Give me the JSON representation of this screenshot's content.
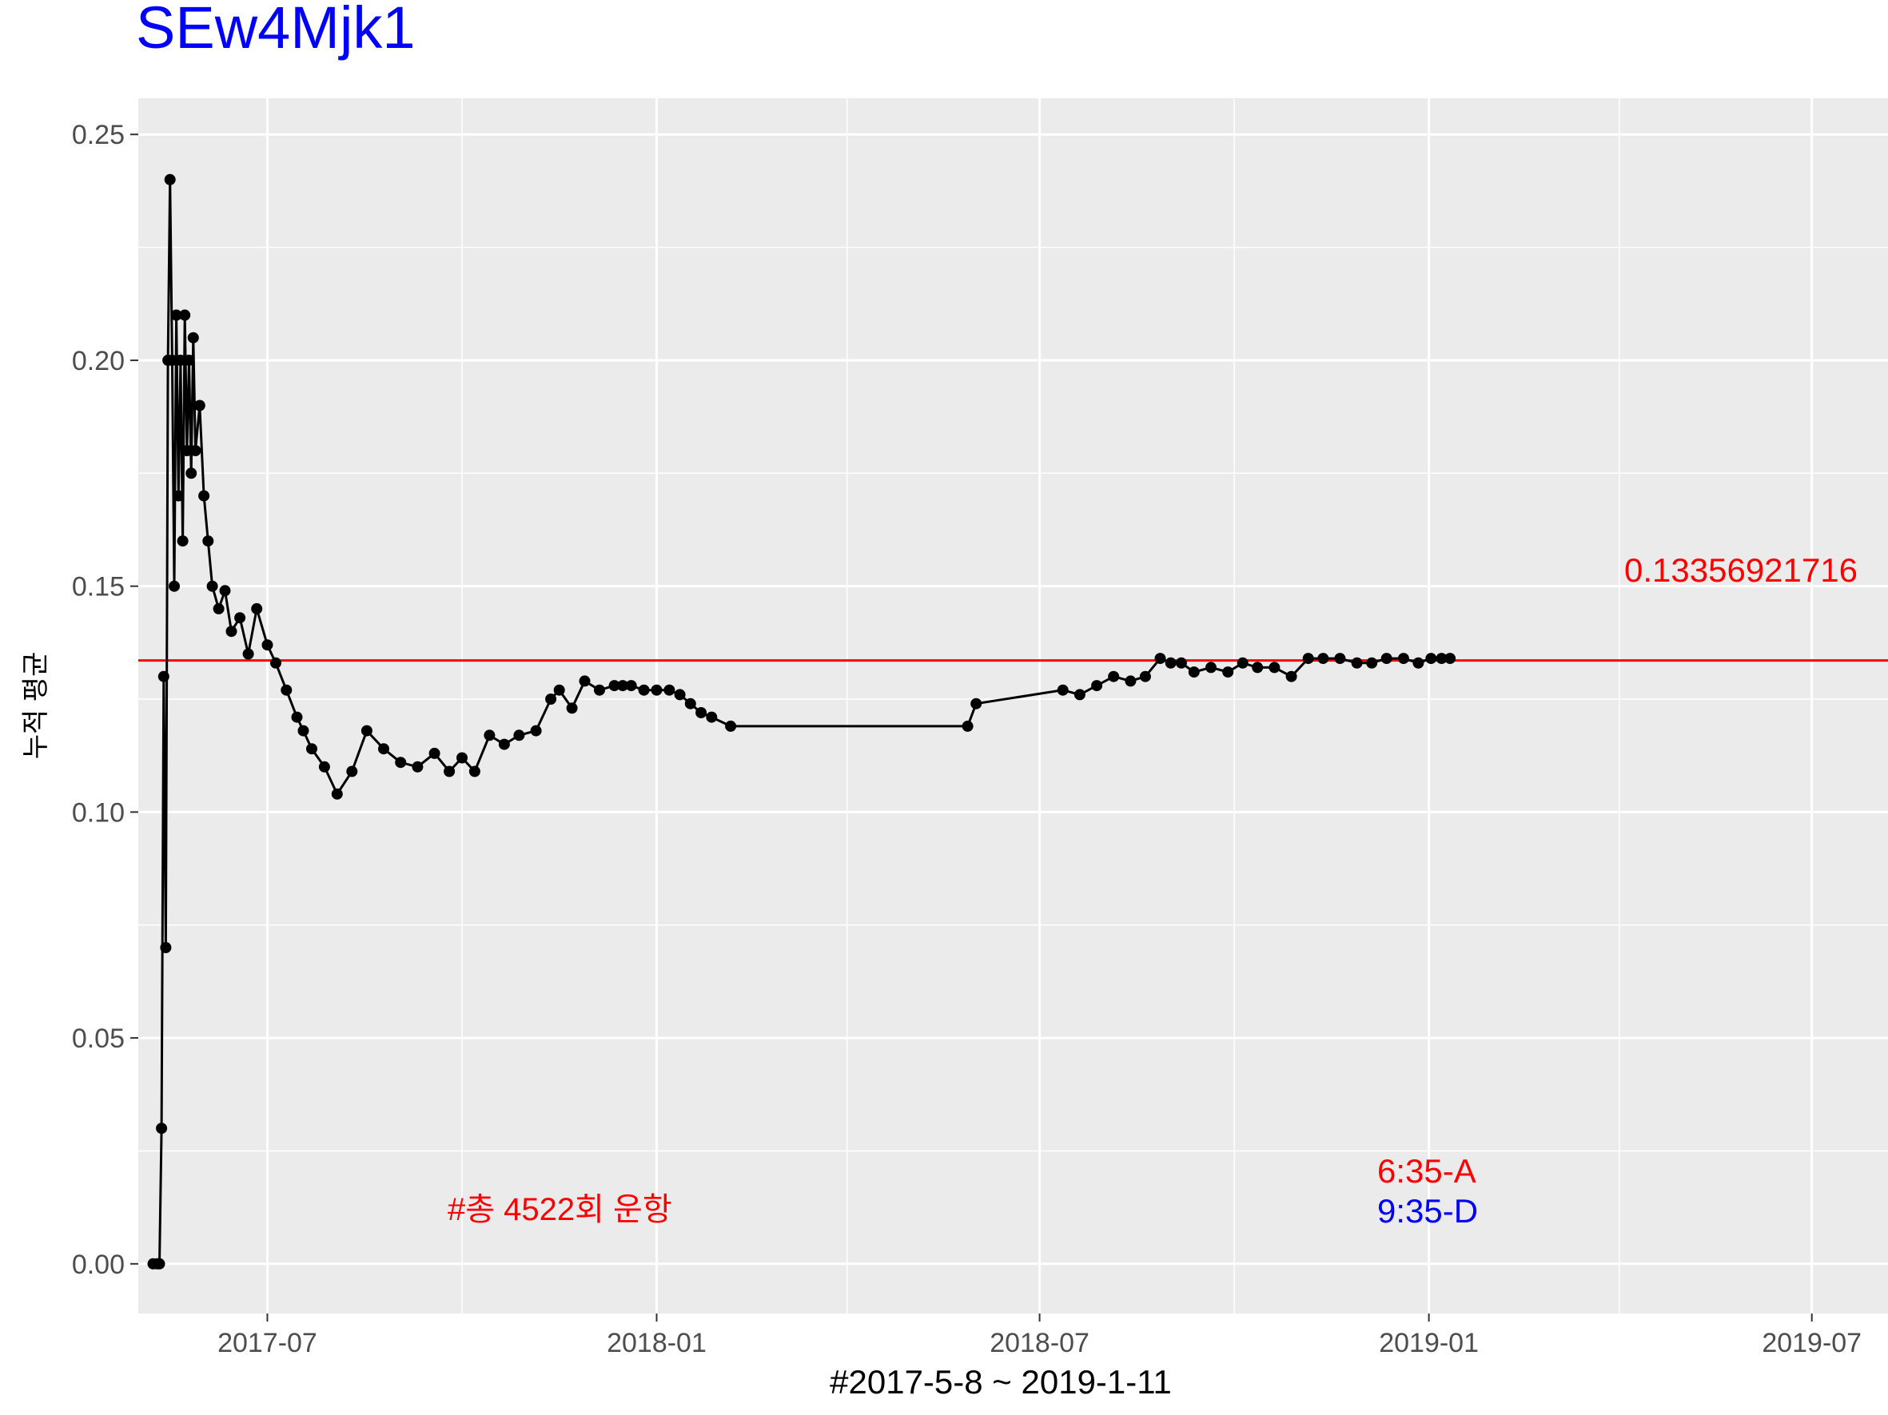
{
  "chart_data": {
    "type": "line",
    "title": "SEw4Mjk1",
    "xlabel": "#2017-5-8 ~ 2019-1-11",
    "ylabel": "누적 평균",
    "x_ticks": [
      "2017-07",
      "2018-01",
      "2018-07",
      "2019-01",
      "2019-07"
    ],
    "y_ticks": [
      "0.00",
      "0.05",
      "0.10",
      "0.15",
      "0.20",
      "0.25"
    ],
    "ylim": [
      -0.011,
      0.258
    ],
    "xlim": [
      "2017-05-01",
      "2019-08-06"
    ],
    "grid": true,
    "series": [
      {
        "x": [
          "2017-05-08",
          "2017-05-10",
          "2017-05-11",
          "2017-05-12",
          "2017-05-13",
          "2017-05-14",
          "2017-05-15",
          "2017-05-16",
          "2017-05-17",
          "2017-05-18",
          "2017-05-19",
          "2017-05-20",
          "2017-05-21",
          "2017-05-22",
          "2017-05-23",
          "2017-05-24",
          "2017-05-25",
          "2017-05-26",
          "2017-05-27",
          "2017-05-28",
          "2017-05-30",
          "2017-06-01",
          "2017-06-03",
          "2017-06-05",
          "2017-06-08",
          "2017-06-11",
          "2017-06-14",
          "2017-06-18",
          "2017-06-22",
          "2017-06-26",
          "2017-07-01",
          "2017-07-05",
          "2017-07-10",
          "2017-07-15",
          "2017-07-18",
          "2017-07-22",
          "2017-07-28",
          "2017-08-03",
          "2017-08-10",
          "2017-08-17",
          "2017-08-25",
          "2017-09-02",
          "2017-09-10",
          "2017-09-18",
          "2017-09-25",
          "2017-10-01",
          "2017-10-07",
          "2017-10-14",
          "2017-10-21",
          "2017-10-28",
          "2017-11-05",
          "2017-11-12",
          "2017-11-16",
          "2017-11-22",
          "2017-11-28",
          "2017-12-05",
          "2017-12-12",
          "2017-12-16",
          "2017-12-20",
          "2017-12-26",
          "2018-01-01",
          "2018-01-07",
          "2018-01-12",
          "2018-01-17",
          "2018-01-22",
          "2018-01-27",
          "2018-02-05",
          "2018-05-28",
          "2018-06-01",
          "2018-07-12",
          "2018-07-20",
          "2018-07-28",
          "2018-08-05",
          "2018-08-13",
          "2018-08-20",
          "2018-08-27",
          "2018-09-01",
          "2018-09-06",
          "2018-09-12",
          "2018-09-20",
          "2018-09-28",
          "2018-10-05",
          "2018-10-12",
          "2018-10-20",
          "2018-10-28",
          "2018-11-05",
          "2018-11-12",
          "2018-11-20",
          "2018-11-28",
          "2018-12-05",
          "2018-12-12",
          "2018-12-20",
          "2018-12-27",
          "2019-01-02",
          "2019-01-07",
          "2019-01-11"
        ],
        "y": [
          0.0,
          0.0,
          0.0,
          0.03,
          0.13,
          0.07,
          0.2,
          0.24,
          0.2,
          0.15,
          0.21,
          0.17,
          0.2,
          0.16,
          0.21,
          0.18,
          0.2,
          0.175,
          0.205,
          0.18,
          0.19,
          0.17,
          0.16,
          0.15,
          0.145,
          0.149,
          0.14,
          0.143,
          0.135,
          0.145,
          0.137,
          0.133,
          0.127,
          0.121,
          0.118,
          0.114,
          0.11,
          0.104,
          0.109,
          0.118,
          0.114,
          0.111,
          0.11,
          0.113,
          0.109,
          0.112,
          0.109,
          0.117,
          0.115,
          0.117,
          0.118,
          0.125,
          0.127,
          0.123,
          0.129,
          0.127,
          0.128,
          0.128,
          0.128,
          0.127,
          0.127,
          0.127,
          0.126,
          0.124,
          0.122,
          0.121,
          0.119,
          0.119,
          0.124,
          0.127,
          0.126,
          0.128,
          0.13,
          0.129,
          0.13,
          0.134,
          0.133,
          0.133,
          0.131,
          0.132,
          0.131,
          0.133,
          0.132,
          0.132,
          0.13,
          0.134,
          0.134,
          0.134,
          0.133,
          0.133,
          0.134,
          0.134,
          0.133,
          0.134,
          0.134,
          0.134
        ],
        "color": "#000000"
      }
    ],
    "hline": {
      "y": 0.13356921716,
      "color": "#ff0000"
    },
    "annotations": {
      "mean_label": "0.13356921716",
      "count_label": "#총 4522회 운항",
      "legend_a": "6:35-A",
      "legend_d": "9:35-D"
    },
    "colors": {
      "panel_bg": "#ebebeb",
      "grid": "#ffffff",
      "title": "#0000ff",
      "accent_red": "#ff0000",
      "accent_blue": "#0000ff"
    }
  }
}
